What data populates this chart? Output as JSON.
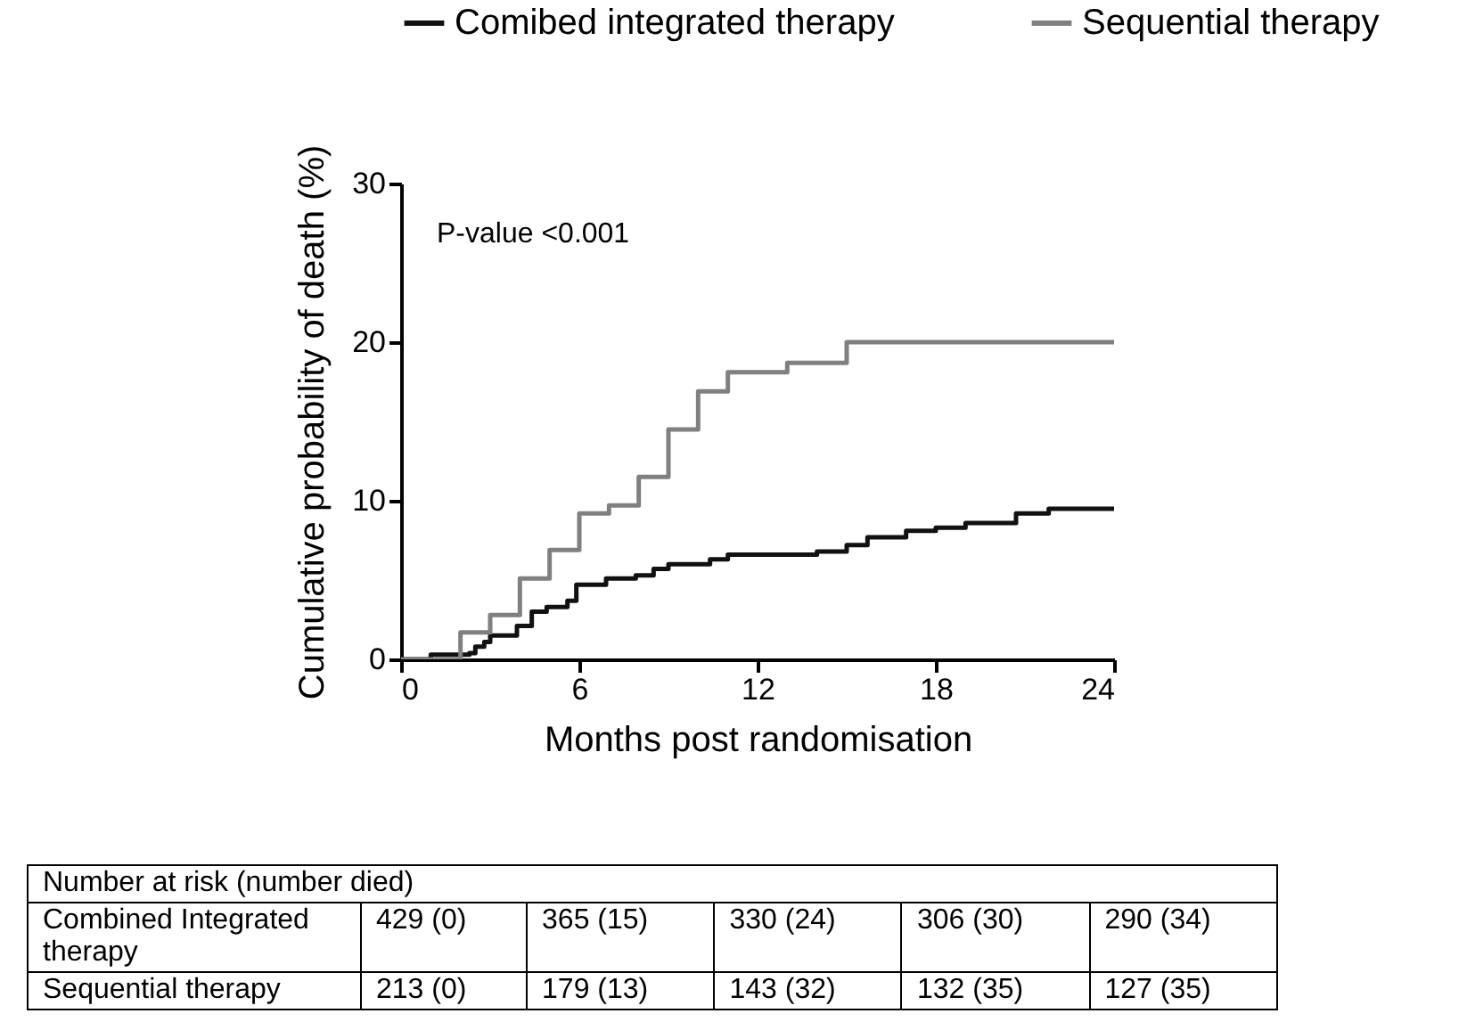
{
  "chart_data": {
    "type": "step",
    "xlabel": "Months post randomisation",
    "ylabel": "Cumulative probability of death (%)",
    "xlim": [
      0,
      24
    ],
    "ylim": [
      0,
      30
    ],
    "xticks": [
      0,
      6,
      12,
      18,
      24
    ],
    "yticks": [
      0,
      10,
      20,
      30
    ],
    "grid": false,
    "legend": "top",
    "series": [
      {
        "name": "Comibed integrated therapy",
        "color": "#111111",
        "x": [
          0,
          1,
          2.3,
          2.5,
          2.8,
          3.0,
          3.9,
          4.4,
          4.9,
          5.6,
          5.9,
          6.9,
          7.9,
          8.5,
          9.0,
          10.4,
          11.0,
          14.0,
          15.0,
          15.7,
          17.0,
          18.0,
          19.0,
          20.7,
          21.8,
          24
        ],
        "values": [
          0,
          0.3,
          0.4,
          0.8,
          1.1,
          1.5,
          2.1,
          3.0,
          3.3,
          3.7,
          4.7,
          5.1,
          5.3,
          5.7,
          6.0,
          6.3,
          6.6,
          6.8,
          7.2,
          7.7,
          8.1,
          8.3,
          8.6,
          9.2,
          9.5,
          9.5
        ]
      },
      {
        "name": "Sequential therapy",
        "color": "#808080",
        "x": [
          0,
          2,
          3,
          4,
          5,
          6,
          7,
          8,
          9,
          10,
          11,
          13,
          15,
          24
        ],
        "values": [
          0,
          1.7,
          2.8,
          5.1,
          6.9,
          9.2,
          9.7,
          11.5,
          14.5,
          16.9,
          18.1,
          18.7,
          20.0,
          20.0
        ]
      }
    ],
    "annotations": [
      "P-value <0.001",
      "Number at risk (number died)",
      "Combined Integrated therapy",
      "429 (0)",
      "365 (15)",
      "330 (24)",
      "306 (30)",
      "290 (34)",
      "Sequential therapy",
      "213 (0)",
      "179 (13)",
      "143 (32)",
      "132 (35)",
      "127 (35)"
    ]
  }
}
